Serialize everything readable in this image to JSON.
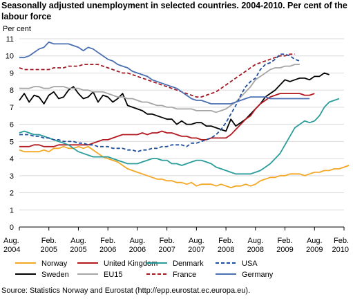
{
  "title": "Seasonally adjusted unemployment in selected countries. 2004-2010. Per cent of the labour force",
  "source": "Source: Statistics Norway and Eurostat (http://epp.eurostat.ec.europa.eu).",
  "chart_data": {
    "type": "line",
    "ylabel": "Per cent",
    "ylim": [
      0,
      11
    ],
    "yticks": [
      0,
      1,
      2,
      3,
      4,
      5,
      6,
      7,
      8,
      9,
      10,
      11
    ],
    "grid": true,
    "legend_position": "bottom",
    "x_ticks": [
      {
        "t": 0,
        "l1": "Aug.",
        "l2": "2004"
      },
      {
        "t": 6,
        "l1": "Feb.",
        "l2": "2005"
      },
      {
        "t": 12,
        "l1": "Aug.",
        "l2": "2005"
      },
      {
        "t": 18,
        "l1": "Feb.",
        "l2": "2006"
      },
      {
        "t": 24,
        "l1": "Aug.",
        "l2": "2006"
      },
      {
        "t": 30,
        "l1": "Feb.",
        "l2": "2007"
      },
      {
        "t": 36,
        "l1": "Aug.",
        "l2": "2007"
      },
      {
        "t": 42,
        "l1": "Feb.",
        "l2": "2008"
      },
      {
        "t": 48,
        "l1": "Aug.",
        "l2": "2008"
      },
      {
        "t": 54,
        "l1": "Feb.",
        "l2": "2009"
      },
      {
        "t": 60,
        "l1": "Aug.",
        "l2": "2009"
      },
      {
        "t": 66,
        "l1": "Feb.",
        "l2": "2010"
      }
    ],
    "series": [
      {
        "name": "Norway",
        "color": "#f5a623",
        "dashed": false,
        "values": [
          4.5,
          4.4,
          4.4,
          4.4,
          4.4,
          4.5,
          4.4,
          4.6,
          4.6,
          4.7,
          4.6,
          4.6,
          4.7,
          4.6,
          4.7,
          4.5,
          4.3,
          4.1,
          4.0,
          3.9,
          3.8,
          3.6,
          3.4,
          3.3,
          3.2,
          3.1,
          3.0,
          2.9,
          2.8,
          2.8,
          2.7,
          2.7,
          2.6,
          2.6,
          2.5,
          2.6,
          2.4,
          2.5,
          2.5,
          2.5,
          2.4,
          2.5,
          2.4,
          2.3,
          2.4,
          2.4,
          2.5,
          2.4,
          2.5,
          2.7,
          2.8,
          2.9,
          2.9,
          3.0,
          3.0,
          3.1,
          3.1,
          3.1,
          3.0,
          3.1,
          3.2,
          3.2,
          3.3,
          3.3,
          3.4,
          3.4,
          3.5,
          3.6
        ]
      },
      {
        "name": "Sweden",
        "color": "#000000",
        "dashed": false,
        "values": [
          7.4,
          7.8,
          7.3,
          7.7,
          7.6,
          7.2,
          7.7,
          7.9,
          7.5,
          7.6,
          8.0,
          8.2,
          7.8,
          7.5,
          7.6,
          7.9,
          7.3,
          7.7,
          7.6,
          7.3,
          7.5,
          7.8,
          7.1,
          7.0,
          6.9,
          6.8,
          6.6,
          6.6,
          6.5,
          6.4,
          6.3,
          6.3,
          6.0,
          6.2,
          6.0,
          6.0,
          6.1,
          6.1,
          5.9,
          5.9,
          5.8,
          5.7,
          5.6,
          6.3,
          5.9,
          6.1,
          6.3,
          6.6,
          6.9,
          7.2,
          7.6,
          7.8,
          8.0,
          8.3,
          8.6,
          8.5,
          8.6,
          8.7,
          8.7,
          8.6,
          8.8,
          8.8,
          9.0,
          8.9
        ]
      },
      {
        "name": "United Kingdom",
        "color": "#b3181f",
        "dashed": false,
        "values": [
          4.7,
          4.7,
          4.7,
          4.8,
          4.8,
          4.7,
          4.7,
          4.7,
          4.8,
          4.8,
          4.8,
          4.8,
          4.8,
          4.8,
          4.8,
          4.9,
          5.0,
          5.1,
          5.1,
          5.2,
          5.3,
          5.4,
          5.4,
          5.4,
          5.4,
          5.5,
          5.4,
          5.5,
          5.5,
          5.6,
          5.5,
          5.5,
          5.4,
          5.3,
          5.3,
          5.2,
          5.2,
          5.1,
          5.1,
          5.2,
          5.2,
          5.2,
          5.2,
          5.4,
          5.7,
          6.0,
          6.3,
          6.5,
          6.9,
          7.2,
          7.4,
          7.6,
          7.7,
          7.8,
          7.8,
          7.8,
          7.8,
          7.8,
          7.7,
          7.7,
          7.8
        ]
      },
      {
        "name": "EU15",
        "color": "#a6a6a6",
        "dashed": false,
        "values": [
          8.1,
          8.1,
          8.1,
          8.2,
          8.2,
          8.1,
          8.1,
          8.2,
          8.2,
          8.2,
          8.1,
          8.1,
          8.1,
          8.0,
          8.0,
          7.9,
          7.9,
          7.9,
          7.8,
          7.7,
          7.6,
          7.6,
          7.5,
          7.5,
          7.4,
          7.3,
          7.3,
          7.2,
          7.1,
          7.1,
          7.0,
          7.0,
          6.9,
          6.9,
          6.9,
          6.9,
          6.8,
          6.8,
          6.8,
          6.8,
          6.7,
          6.8,
          6.9,
          7.1,
          7.3,
          7.6,
          7.9,
          8.2,
          8.6,
          8.8,
          9.0,
          9.2,
          9.3,
          9.3,
          9.4,
          9.4,
          9.5,
          9.5
        ]
      },
      {
        "name": "Denmark",
        "color": "#2a9d9a",
        "dashed": false,
        "values": [
          5.5,
          5.6,
          5.5,
          5.4,
          5.4,
          5.3,
          5.2,
          5.1,
          5.0,
          4.9,
          4.8,
          4.6,
          4.4,
          4.3,
          4.2,
          4.1,
          4.1,
          4.1,
          4.1,
          4.0,
          3.9,
          3.8,
          3.7,
          3.7,
          3.7,
          3.8,
          3.9,
          4.0,
          4.0,
          3.9,
          3.9,
          3.7,
          3.7,
          3.6,
          3.7,
          3.8,
          3.9,
          3.9,
          3.8,
          3.7,
          3.5,
          3.4,
          3.3,
          3.2,
          3.1,
          3.1,
          3.1,
          3.1,
          3.2,
          3.3,
          3.5,
          3.7,
          4.0,
          4.3,
          4.8,
          5.3,
          5.8,
          6.0,
          6.2,
          6.1,
          6.2,
          6.5,
          7.0,
          7.3,
          7.4,
          7.5
        ]
      },
      {
        "name": "France",
        "color": "#a01822",
        "dashed": true,
        "values": [
          9.3,
          9.2,
          9.2,
          9.2,
          9.2,
          9.2,
          9.2,
          9.3,
          9.3,
          9.3,
          9.4,
          9.4,
          9.4,
          9.5,
          9.5,
          9.5,
          9.5,
          9.4,
          9.3,
          9.2,
          9.1,
          9.0,
          9.0,
          8.9,
          8.8,
          8.7,
          8.6,
          8.5,
          8.4,
          8.3,
          8.2,
          8.1,
          8.0,
          7.9,
          7.8,
          7.7,
          7.6,
          7.6,
          7.7,
          7.8,
          7.9,
          8.1,
          8.3,
          8.5,
          8.7,
          8.9,
          9.1,
          9.3,
          9.5,
          9.6,
          9.7,
          9.8,
          9.9,
          10.0,
          10.0,
          10.1,
          10.1
        ]
      },
      {
        "name": "USA",
        "color": "#1f4e9c",
        "dashed": true,
        "values": [
          5.4,
          5.4,
          5.4,
          5.3,
          5.3,
          5.2,
          5.2,
          5.1,
          5.1,
          5.0,
          5.0,
          5.0,
          4.9,
          4.9,
          4.8,
          4.8,
          4.7,
          4.7,
          4.7,
          4.6,
          4.6,
          4.6,
          4.5,
          4.5,
          4.4,
          4.5,
          4.5,
          4.6,
          4.6,
          4.7,
          4.7,
          4.8,
          4.8,
          4.8,
          4.7,
          4.9,
          4.9,
          5.0,
          5.1,
          5.2,
          5.4,
          5.7,
          6.1,
          6.6,
          7.1,
          7.7,
          8.2,
          8.5,
          8.7,
          9.2,
          9.5,
          9.6,
          9.8,
          10.1,
          10.1,
          10.0,
          9.8,
          9.7
        ]
      },
      {
        "name": "Germany",
        "color": "#4a6fb3",
        "dashed": false,
        "values": [
          9.9,
          9.9,
          10.0,
          10.2,
          10.4,
          10.5,
          10.8,
          10.7,
          10.7,
          10.7,
          10.7,
          10.6,
          10.5,
          10.3,
          10.5,
          10.4,
          10.2,
          10.0,
          9.8,
          9.7,
          9.5,
          9.4,
          9.3,
          9.1,
          9.0,
          8.9,
          8.8,
          8.6,
          8.5,
          8.4,
          8.3,
          8.2,
          8.1,
          7.9,
          7.7,
          7.5,
          7.4,
          7.4,
          7.3,
          7.2,
          7.2,
          7.2,
          7.2,
          7.2,
          7.3,
          7.4,
          7.5,
          7.6,
          7.6,
          7.6,
          7.6,
          7.5,
          7.5,
          7.5,
          7.5,
          7.5,
          7.5,
          7.5,
          7.5,
          7.5
        ]
      }
    ]
  }
}
